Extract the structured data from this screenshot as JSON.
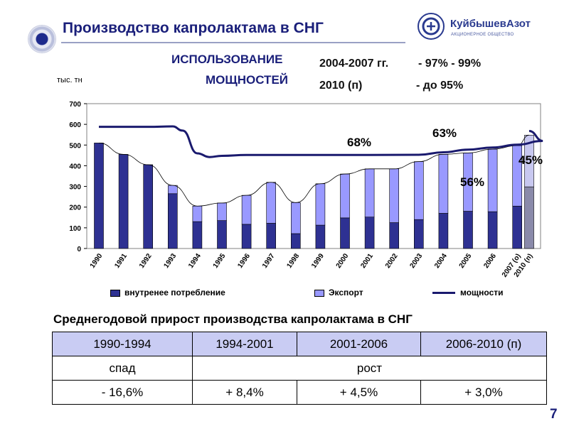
{
  "title": "Производство капролактама в СНГ",
  "logo": {
    "name": "КуйбышевАзот",
    "subtitle": "АКЦИОНЕРНОЕ ОБЩЕСТВО"
  },
  "capacity": {
    "label_line1": "ИСПОЛЬЗОВАНИЕ",
    "label_line2": "МОЩНОСТЕЙ",
    "row1_period": "2004-2007 гг.",
    "row1_value": "- 97% - 99%",
    "row2_period": "2010 (п)",
    "row2_value": "- до 95%"
  },
  "colors": {
    "domestic": "#2e3192",
    "export": "#9999ff",
    "capacity_line": "#1a1a6e",
    "projection_domestic": "#8a8aaa",
    "projection_export": "#c8c8f0",
    "plot_background": "#ffffff",
    "title": "#1a1f7a"
  },
  "chart_data": {
    "type": "bar",
    "stacked": true,
    "unit": "тыс. тн",
    "categories": [
      "1990",
      "1991",
      "1992",
      "1993",
      "1994",
      "1995",
      "1996",
      "1997",
      "1998",
      "1999",
      "2000",
      "2001",
      "2002",
      "2003",
      "2004",
      "2005",
      "2006",
      "2007 (о)",
      "2010 (п)"
    ],
    "series": [
      {
        "name": "внутренее потребление",
        "values": [
          510,
          455,
          405,
          265,
          130,
          135,
          117,
          122,
          72,
          113,
          148,
          152,
          125,
          140,
          170,
          180,
          178,
          205,
          298
        ]
      },
      {
        "name": "Экспорт",
        "values": [
          0,
          0,
          0,
          40,
          75,
          85,
          140,
          198,
          150,
          200,
          212,
          233,
          260,
          280,
          285,
          282,
          302,
          292,
          250
        ]
      }
    ],
    "capacity_line": {
      "name": "мощности",
      "points": [
        [
          "1990",
          588
        ],
        [
          "1992",
          588
        ],
        [
          "1993",
          590
        ],
        [
          "1993.4",
          570
        ],
        [
          "1994",
          460
        ],
        [
          "1994.5",
          442
        ],
        [
          "1995",
          448
        ],
        [
          "1996",
          452
        ],
        [
          "2001",
          452
        ],
        [
          "2003",
          453
        ],
        [
          "2004",
          465
        ],
        [
          "2005",
          478
        ],
        [
          "2006",
          488
        ],
        [
          "2007",
          502
        ],
        [
          "2008",
          520
        ],
        [
          "2010",
          568
        ]
      ]
    },
    "y_range": [
      0,
      700
    ],
    "y_ticks": [
      0,
      100,
      200,
      300,
      400,
      500,
      600,
      700
    ],
    "grid": false,
    "legend_position": "bottom",
    "annotations": [
      "68%",
      "63%",
      "56%",
      "45%"
    ]
  },
  "table": {
    "title": "Среднегодовой прирост производства капролактама в СНГ",
    "periods": [
      "1990-1994",
      "1994-2001",
      "2001-2006",
      "2006-2010 (п)"
    ],
    "trend": [
      "спад",
      "рост"
    ],
    "growth": [
      "- 16,6%",
      "+ 8,4%",
      "+ 4,5%",
      "+ 3,0%"
    ]
  },
  "page_number": "7"
}
